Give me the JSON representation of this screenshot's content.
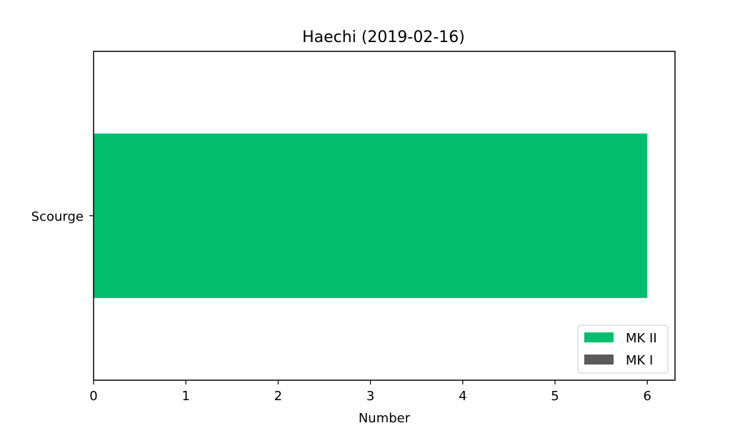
{
  "chart_data": {
    "type": "bar",
    "orientation": "horizontal",
    "stacked": true,
    "title": "Haechi (2019-02-16)",
    "xlabel": "Number",
    "ylabel": "",
    "categories": [
      "Scourge"
    ],
    "series": [
      {
        "name": "MK I",
        "values": [
          0
        ],
        "color": "#5a5a5a"
      },
      {
        "name": "MK II",
        "values": [
          6
        ],
        "color": "#00be6e"
      }
    ],
    "xlim": [
      0,
      6.3
    ],
    "xticks": [
      0,
      1,
      2,
      3,
      4,
      5,
      6
    ],
    "grid": false,
    "legend": {
      "position": "lower-right",
      "entries": [
        "MK II",
        "MK I"
      ]
    }
  }
}
